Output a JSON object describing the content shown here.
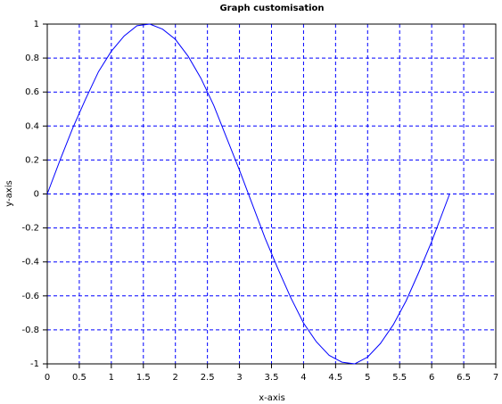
{
  "chart_data": {
    "type": "line",
    "title": "Graph customisation",
    "x_label": "x-axis",
    "y_label": "y-axis",
    "x": [
      0,
      0.2,
      0.4,
      0.6,
      0.8,
      1.0,
      1.2,
      1.4,
      1.6,
      1.8,
      2.0,
      2.2,
      2.4,
      2.6,
      2.8,
      3.0,
      3.2,
      3.4,
      3.6,
      3.8,
      4.0,
      4.2,
      4.4,
      4.6,
      4.8,
      5.0,
      5.2,
      5.4,
      5.6,
      5.8,
      6.0,
      6.2,
      6.28
    ],
    "series": [
      {
        "color": "#0000ff",
        "values": [
          0,
          0.2,
          0.39,
          0.56,
          0.72,
          0.84,
          0.93,
          0.99,
          1.0,
          0.97,
          0.91,
          0.81,
          0.68,
          0.52,
          0.33,
          0.14,
          -0.06,
          -0.26,
          -0.44,
          -0.61,
          -0.76,
          -0.87,
          -0.95,
          -0.99,
          -1.0,
          -0.96,
          -0.88,
          -0.77,
          -0.63,
          -0.46,
          -0.28,
          -0.08,
          0.0
        ]
      }
    ],
    "xlim": [
      0,
      7
    ],
    "xticks": [
      0,
      0.5,
      1,
      1.5,
      2,
      2.5,
      3,
      3.5,
      4,
      4.5,
      5,
      5.5,
      6,
      6.5,
      7
    ],
    "ylim": [
      -1,
      1
    ],
    "yticks": [
      -1,
      -0.8,
      -0.6,
      -0.4,
      -0.2,
      0,
      0.2,
      0.4,
      0.6,
      0.8,
      1
    ],
    "grid": true,
    "grid_color": "#0000ff"
  }
}
